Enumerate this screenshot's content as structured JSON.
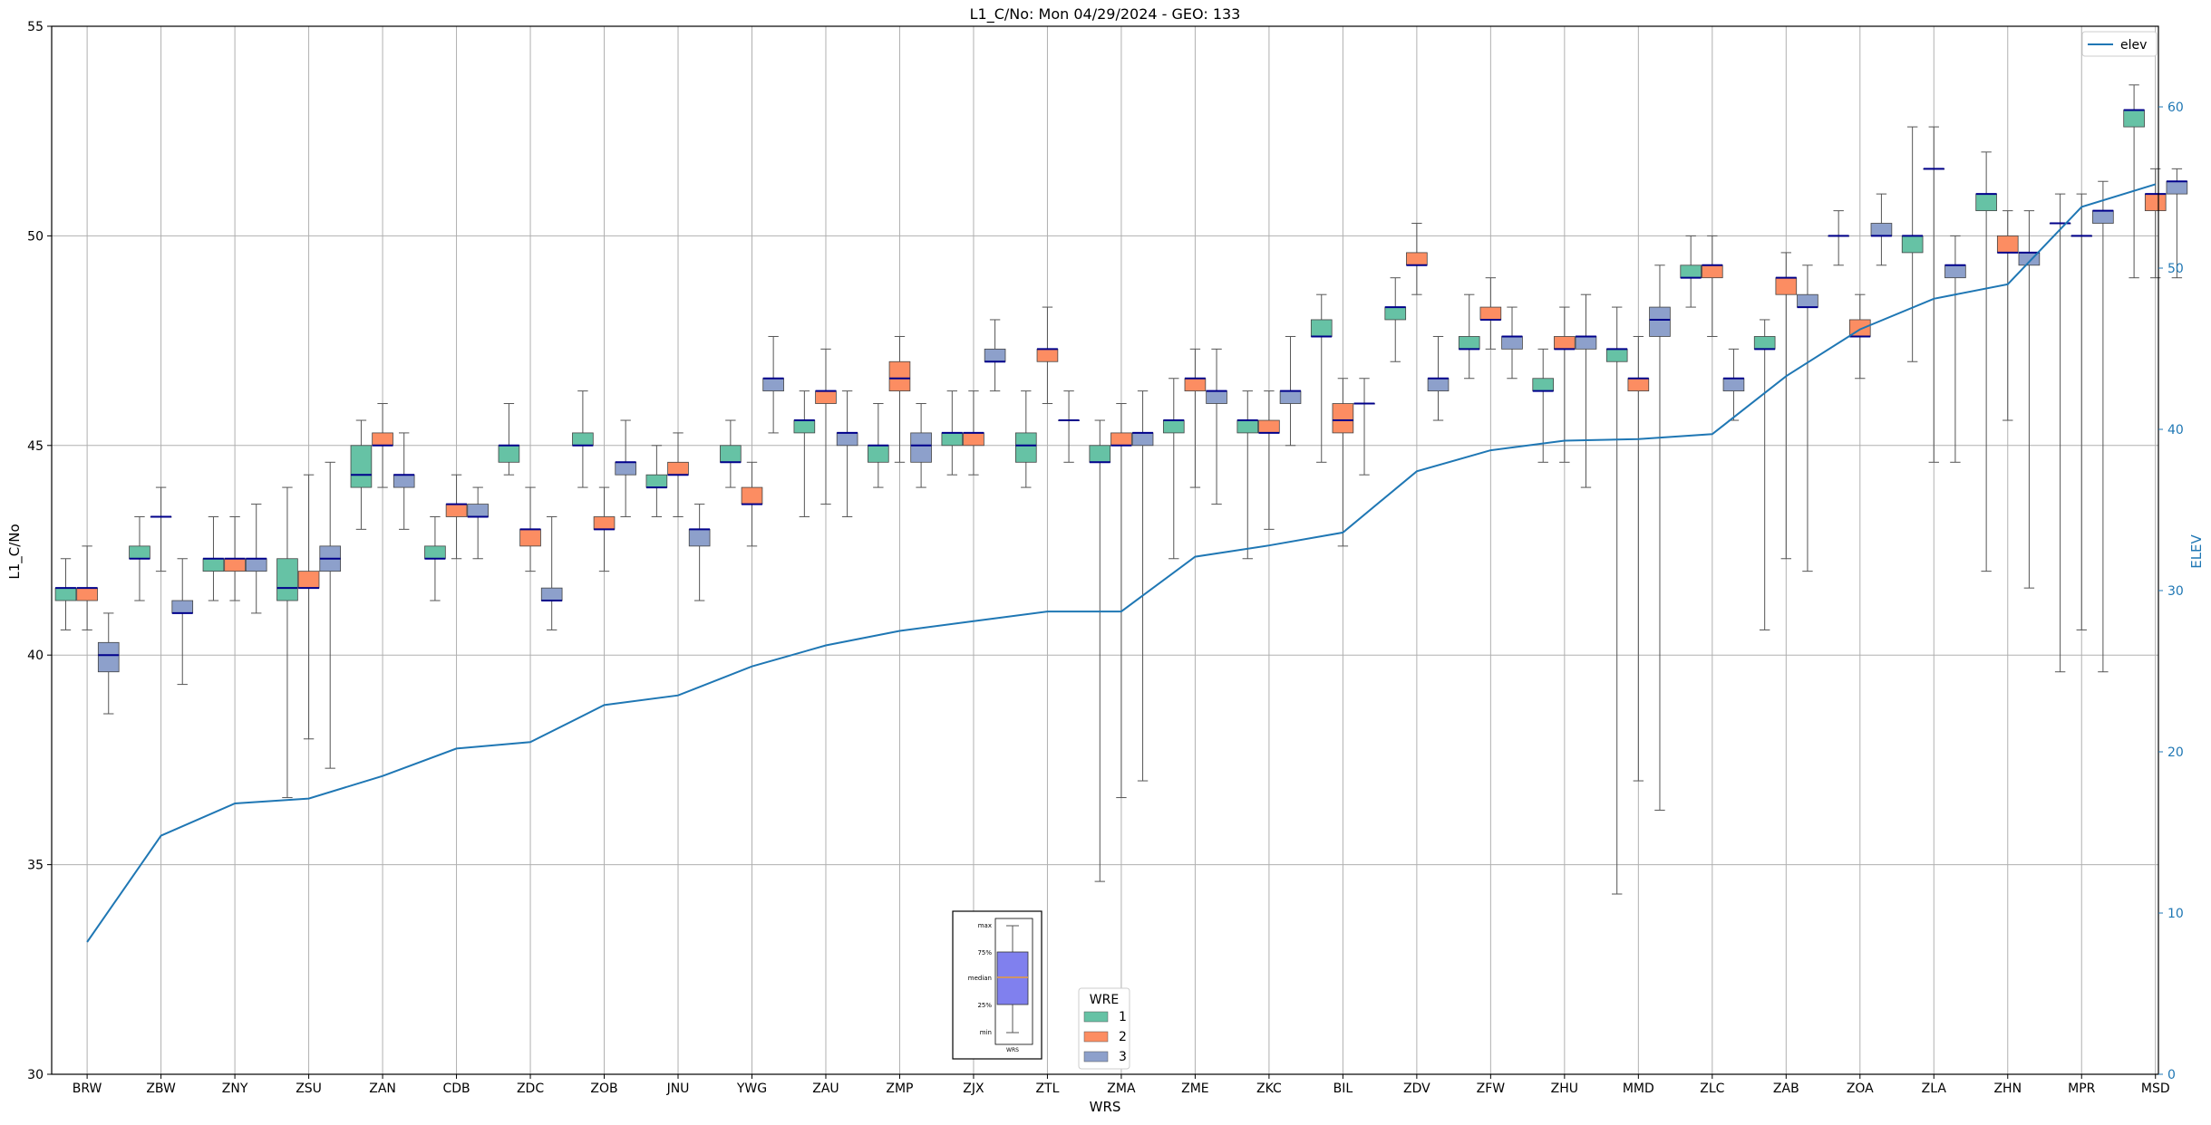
{
  "chart_data": {
    "type": "box",
    "title": "L1_C/No: Mon 04/29/2024 - GEO: 133",
    "xlabel": "WRS",
    "ylabel": "L1_C/No",
    "y2label": "ELEV",
    "ylim": [
      30,
      55
    ],
    "y2lim": [
      0,
      65
    ],
    "yticks": [
      30,
      35,
      40,
      45,
      50,
      55
    ],
    "y2ticks": [
      0,
      10,
      20,
      30,
      40,
      50,
      60
    ],
    "grid": true,
    "categories": [
      "BRW",
      "ZBW",
      "ZNY",
      "ZSU",
      "ZAN",
      "CDB",
      "ZDC",
      "ZOB",
      "JNU",
      "YWG",
      "ZAU",
      "ZMP",
      "ZJX",
      "ZTL",
      "ZMA",
      "ZME",
      "ZKC",
      "BIL",
      "ZDV",
      "ZFW",
      "ZHU",
      "MMD",
      "ZLC",
      "ZAB",
      "ZOA",
      "ZLA",
      "ZHN",
      "MPR",
      "MSD"
    ],
    "wre_legend": {
      "title": "WRE",
      "entries": [
        {
          "name": "1",
          "color": "#66c2a5"
        },
        {
          "name": "2",
          "color": "#fc8d62"
        },
        {
          "name": "3",
          "color": "#8da0cb"
        }
      ]
    },
    "elev_legend": {
      "name": "elev",
      "color": "#1f77b4"
    },
    "elev": [
      8.2,
      14.8,
      16.8,
      17.1,
      18.5,
      20.2,
      20.6,
      22.9,
      23.5,
      25.3,
      26.6,
      27.5,
      28.1,
      28.7,
      28.7,
      32.1,
      32.8,
      33.6,
      37.4,
      38.7,
      39.3,
      39.4,
      39.7,
      43.3,
      46.2,
      48.1,
      49.0,
      53.8,
      55.2
    ],
    "series": [
      {
        "name": "1",
        "boxes": [
          [
            40.6,
            41.3,
            41.6,
            41.6,
            42.3
          ],
          [
            41.3,
            42.3,
            42.3,
            42.6,
            43.3
          ],
          [
            41.3,
            42.0,
            42.3,
            42.3,
            43.3
          ],
          [
            36.6,
            41.3,
            41.6,
            42.3,
            44.0
          ],
          [
            43.0,
            44.0,
            44.3,
            45.0,
            45.6
          ],
          [
            41.3,
            42.3,
            42.3,
            42.6,
            43.3
          ],
          [
            44.3,
            44.6,
            45.0,
            45.0,
            46.0
          ],
          [
            44.0,
            45.0,
            45.0,
            45.3,
            46.3
          ],
          [
            43.3,
            44.0,
            44.0,
            44.3,
            45.0
          ],
          [
            44.0,
            44.6,
            44.6,
            45.0,
            45.6
          ],
          [
            43.3,
            45.3,
            45.6,
            45.6,
            46.3
          ],
          [
            44.0,
            44.6,
            45.0,
            45.0,
            46.0
          ],
          [
            44.3,
            45.0,
            45.3,
            45.3,
            46.3
          ],
          [
            44.0,
            44.6,
            45.0,
            45.3,
            46.3
          ],
          [
            34.6,
            44.6,
            44.6,
            45.0,
            45.6
          ],
          [
            42.3,
            45.3,
            45.6,
            45.6,
            46.6
          ],
          [
            42.3,
            45.3,
            45.6,
            45.6,
            46.3
          ],
          [
            44.6,
            47.6,
            47.6,
            48.0,
            48.6
          ],
          [
            47.0,
            48.0,
            48.3,
            48.3,
            49.0
          ],
          [
            46.6,
            47.3,
            47.3,
            47.6,
            48.6
          ],
          [
            44.6,
            46.3,
            46.3,
            46.6,
            47.3
          ],
          [
            34.3,
            47.0,
            47.3,
            47.3,
            48.3
          ],
          [
            48.3,
            49.0,
            49.0,
            49.3,
            50.0
          ],
          [
            40.6,
            47.3,
            47.3,
            47.6,
            48.0
          ],
          [
            49.3,
            50.0,
            50.0,
            50.0,
            50.6
          ],
          [
            47.0,
            49.6,
            50.0,
            50.0,
            52.6
          ],
          [
            42.0,
            50.6,
            51.0,
            51.0,
            52.0
          ],
          [
            39.6,
            50.3,
            50.3,
            50.3,
            51.0
          ],
          [
            49.0,
            52.6,
            53.0,
            53.0,
            53.6
          ]
        ]
      },
      {
        "name": "2",
        "boxes": [
          [
            40.6,
            41.3,
            41.6,
            41.6,
            42.6
          ],
          [
            42.0,
            43.3,
            43.3,
            43.3,
            44.0
          ],
          [
            41.3,
            42.0,
            42.3,
            42.3,
            43.3
          ],
          [
            38.0,
            41.6,
            41.6,
            42.0,
            44.3
          ],
          [
            44.0,
            45.0,
            45.0,
            45.3,
            46.0
          ],
          [
            42.3,
            43.3,
            43.6,
            43.6,
            44.3
          ],
          [
            42.0,
            42.6,
            43.0,
            43.0,
            44.0
          ],
          [
            42.0,
            43.0,
            43.0,
            43.3,
            44.0
          ],
          [
            43.3,
            44.3,
            44.3,
            44.6,
            45.3
          ],
          [
            42.6,
            43.6,
            43.6,
            44.0,
            44.6
          ],
          [
            43.6,
            46.0,
            46.3,
            46.3,
            47.3
          ],
          [
            44.6,
            46.3,
            46.6,
            47.0,
            47.6
          ],
          [
            44.3,
            45.0,
            45.3,
            45.3,
            46.3
          ],
          [
            46.0,
            47.0,
            47.3,
            47.3,
            48.3
          ],
          [
            36.6,
            45.0,
            45.0,
            45.3,
            46.0
          ],
          [
            44.0,
            46.3,
            46.6,
            46.6,
            47.3
          ],
          [
            43.0,
            45.3,
            45.3,
            45.6,
            46.3
          ],
          [
            42.6,
            45.3,
            45.6,
            46.0,
            46.6
          ],
          [
            48.6,
            49.3,
            49.3,
            49.6,
            50.3
          ],
          [
            47.3,
            48.0,
            48.0,
            48.3,
            49.0
          ],
          [
            44.6,
            47.3,
            47.3,
            47.6,
            48.3
          ],
          [
            37.0,
            46.3,
            46.6,
            46.6,
            47.6
          ],
          [
            47.6,
            49.0,
            49.3,
            49.3,
            50.0
          ],
          [
            42.3,
            48.6,
            49.0,
            49.0,
            49.6
          ],
          [
            46.6,
            47.6,
            47.6,
            48.0,
            48.6
          ],
          [
            44.6,
            51.6,
            51.6,
            51.6,
            52.6
          ],
          [
            45.6,
            49.6,
            49.6,
            50.0,
            50.6
          ],
          [
            40.6,
            50.0,
            50.0,
            50.0,
            51.0
          ],
          [
            49.0,
            50.6,
            51.0,
            51.0,
            51.6
          ]
        ]
      },
      {
        "name": "3",
        "boxes": [
          [
            38.6,
            39.6,
            40.0,
            40.3,
            41.0
          ],
          [
            39.3,
            41.0,
            41.0,
            41.3,
            42.3
          ],
          [
            41.0,
            42.0,
            42.3,
            42.3,
            43.6
          ],
          [
            37.3,
            42.0,
            42.3,
            42.6,
            44.6
          ],
          [
            43.0,
            44.0,
            44.3,
            44.3,
            45.3
          ],
          [
            42.3,
            43.3,
            43.3,
            43.6,
            44.0
          ],
          [
            40.6,
            41.3,
            41.3,
            41.6,
            43.3
          ],
          [
            43.3,
            44.3,
            44.6,
            44.6,
            45.6
          ],
          [
            41.3,
            42.6,
            43.0,
            43.0,
            43.6
          ],
          [
            45.3,
            46.3,
            46.6,
            46.6,
            47.6
          ],
          [
            43.3,
            45.0,
            45.3,
            45.3,
            46.3
          ],
          [
            44.0,
            44.6,
            45.0,
            45.3,
            46.0
          ],
          [
            46.3,
            47.0,
            47.0,
            47.3,
            48.0
          ],
          [
            44.6,
            45.6,
            45.6,
            45.6,
            46.3
          ],
          [
            37.0,
            45.0,
            45.3,
            45.3,
            46.3
          ],
          [
            43.6,
            46.0,
            46.3,
            46.3,
            47.3
          ],
          [
            45.0,
            46.0,
            46.3,
            46.3,
            47.6
          ],
          [
            44.3,
            46.0,
            46.0,
            46.0,
            46.6
          ],
          [
            45.6,
            46.3,
            46.6,
            46.6,
            47.6
          ],
          [
            46.6,
            47.3,
            47.6,
            47.6,
            48.3
          ],
          [
            44.0,
            47.3,
            47.6,
            47.6,
            48.6
          ],
          [
            36.3,
            47.6,
            48.0,
            48.3,
            49.3
          ],
          [
            45.6,
            46.3,
            46.6,
            46.6,
            47.3
          ],
          [
            42.0,
            48.3,
            48.3,
            48.6,
            49.3
          ],
          [
            49.3,
            50.0,
            50.0,
            50.3,
            51.0
          ],
          [
            44.6,
            49.0,
            49.3,
            49.3,
            50.0
          ],
          [
            41.6,
            49.3,
            49.6,
            49.6,
            50.6
          ],
          [
            39.6,
            50.3,
            50.6,
            50.6,
            51.3
          ],
          [
            49.0,
            51.0,
            51.3,
            51.3,
            51.6
          ]
        ]
      }
    ],
    "key_inset": {
      "labels": [
        "max",
        "75%",
        "median",
        "25%",
        "min"
      ],
      "xlabel": "WRS"
    }
  }
}
